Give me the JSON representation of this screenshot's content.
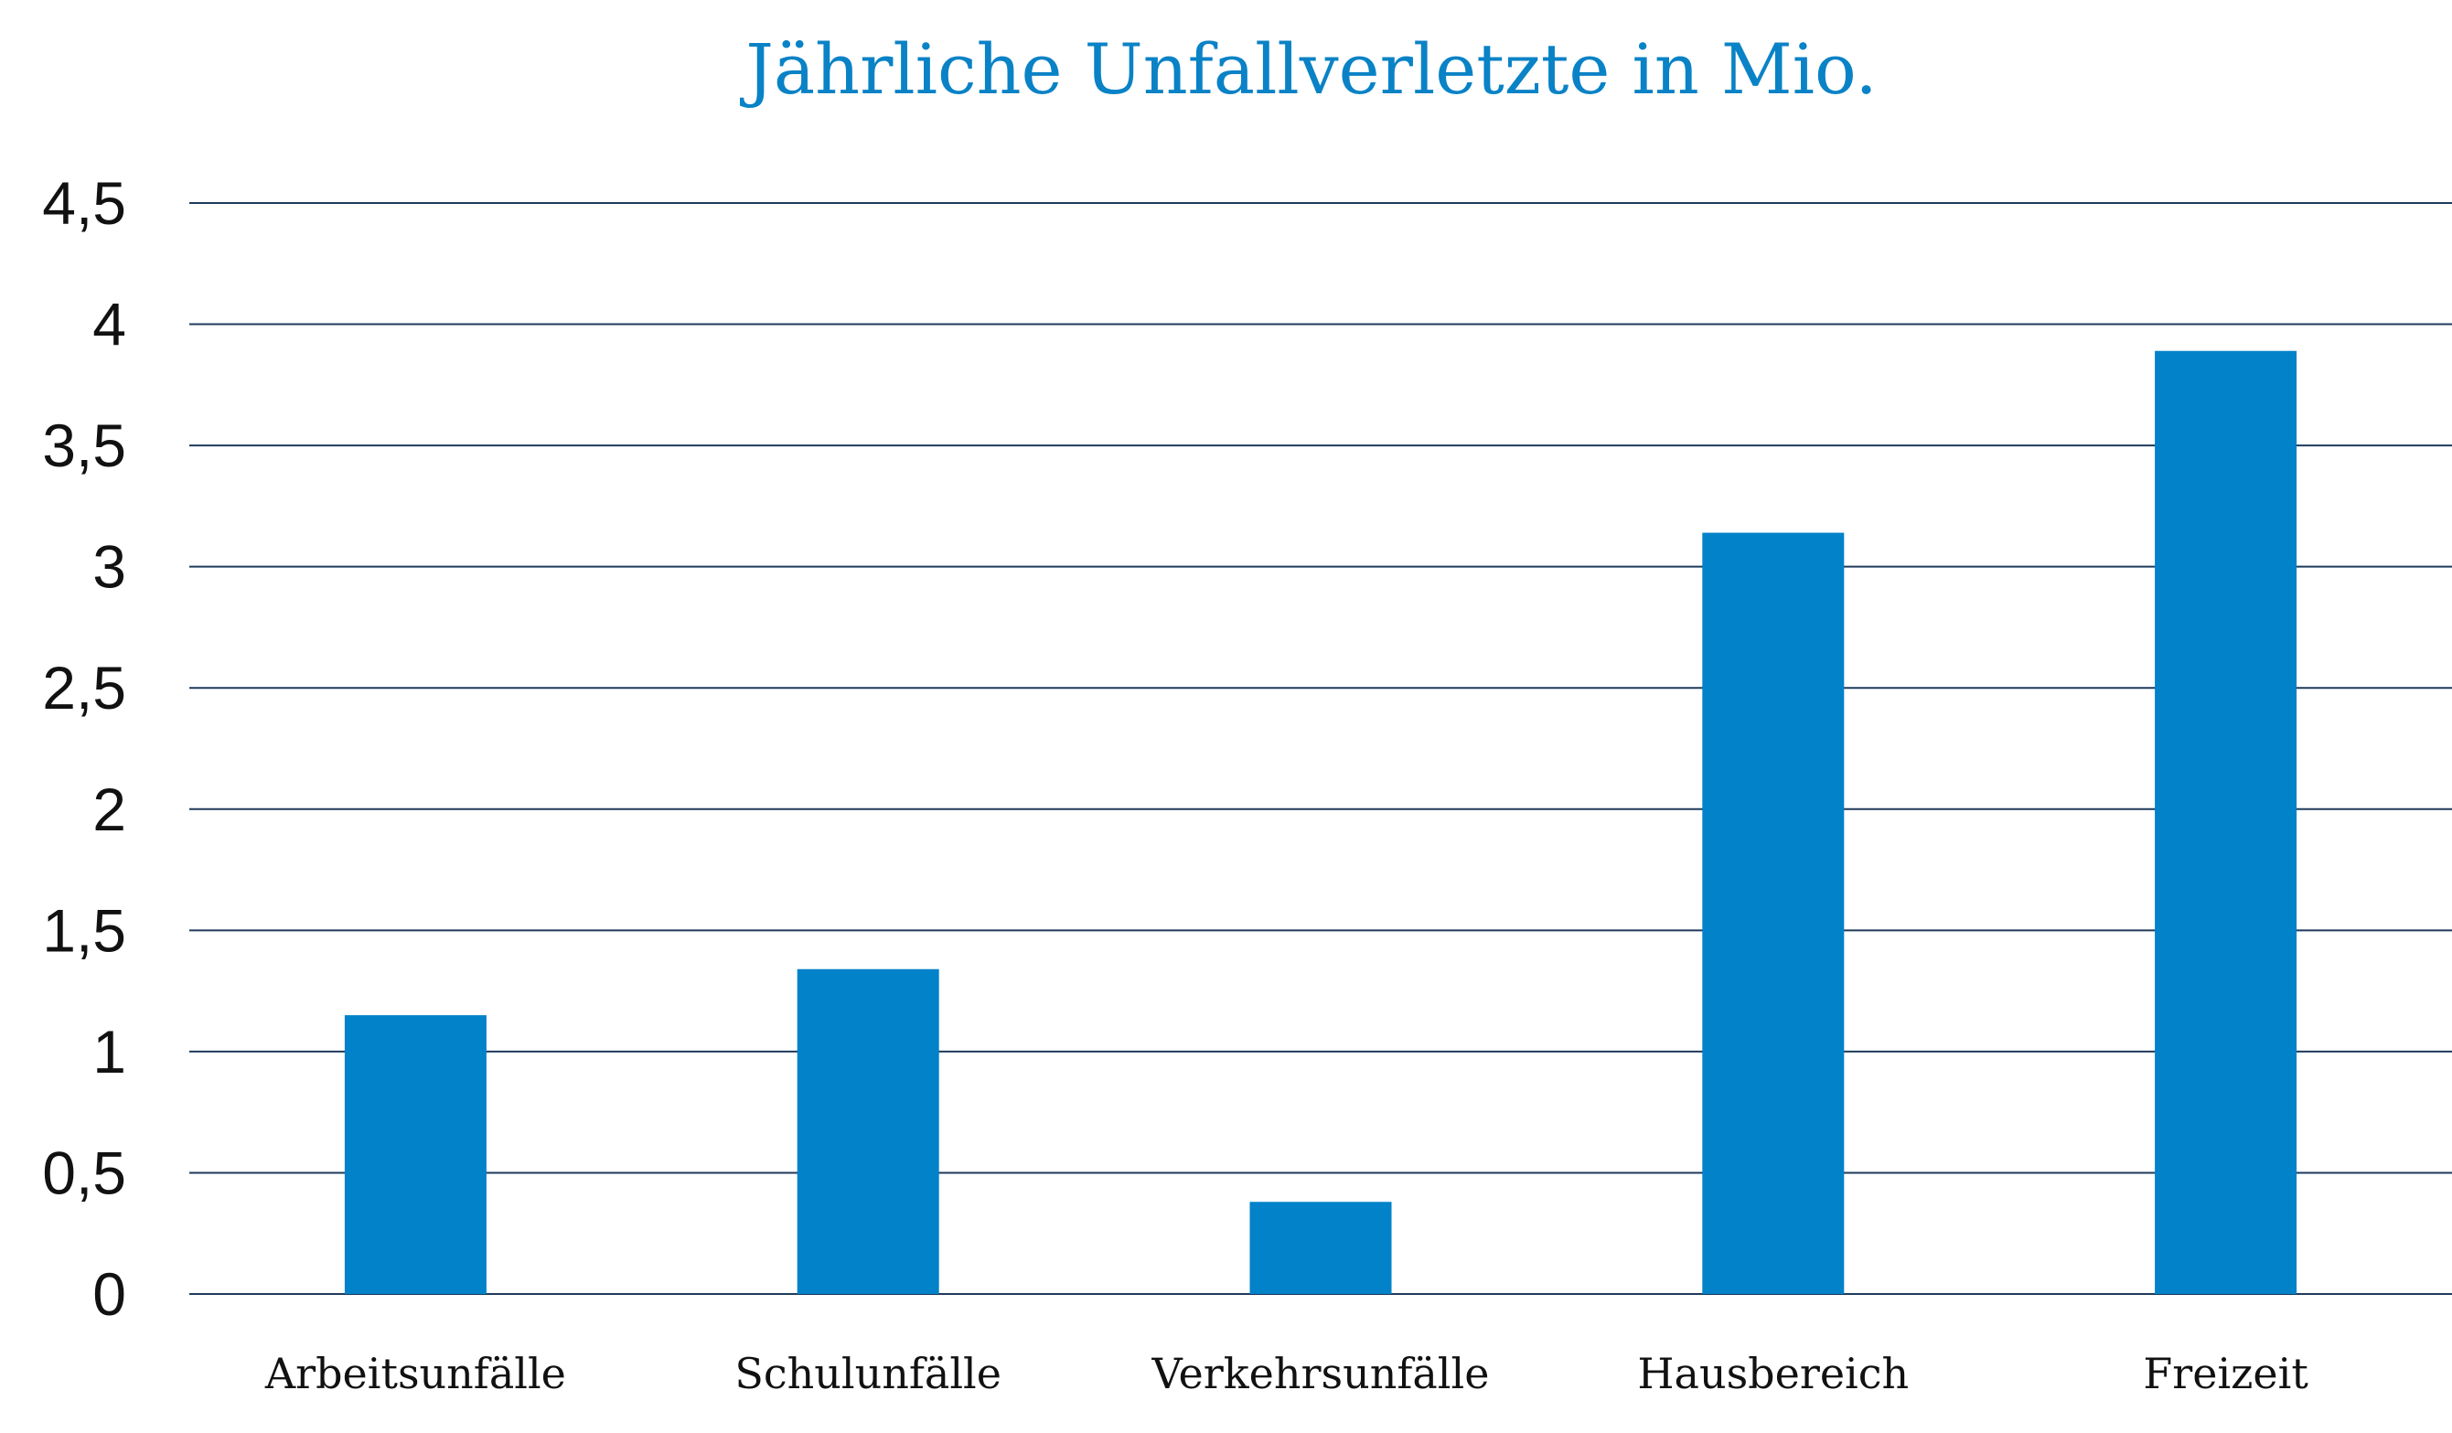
{
  "chart_data": {
    "type": "bar",
    "title": "Jährliche Unfallverletzte in Mio.",
    "categories": [
      "Arbeitsunfälle",
      "Schulunfälle",
      "Verkehrsunfälle",
      "Hausbereich",
      "Freizeit"
    ],
    "values": [
      1.15,
      1.34,
      0.38,
      3.14,
      3.89
    ],
    "ylim": [
      0,
      4.5
    ],
    "yticks": [
      "0",
      "0,5",
      "1",
      "1,5",
      "2",
      "2,5",
      "3",
      "3,5",
      "4",
      "4,5"
    ],
    "grid": true,
    "colors": {
      "bar": "#0282c9",
      "title": "#0a82c6",
      "grid": "#1f3a5a",
      "text": "#111111"
    }
  }
}
